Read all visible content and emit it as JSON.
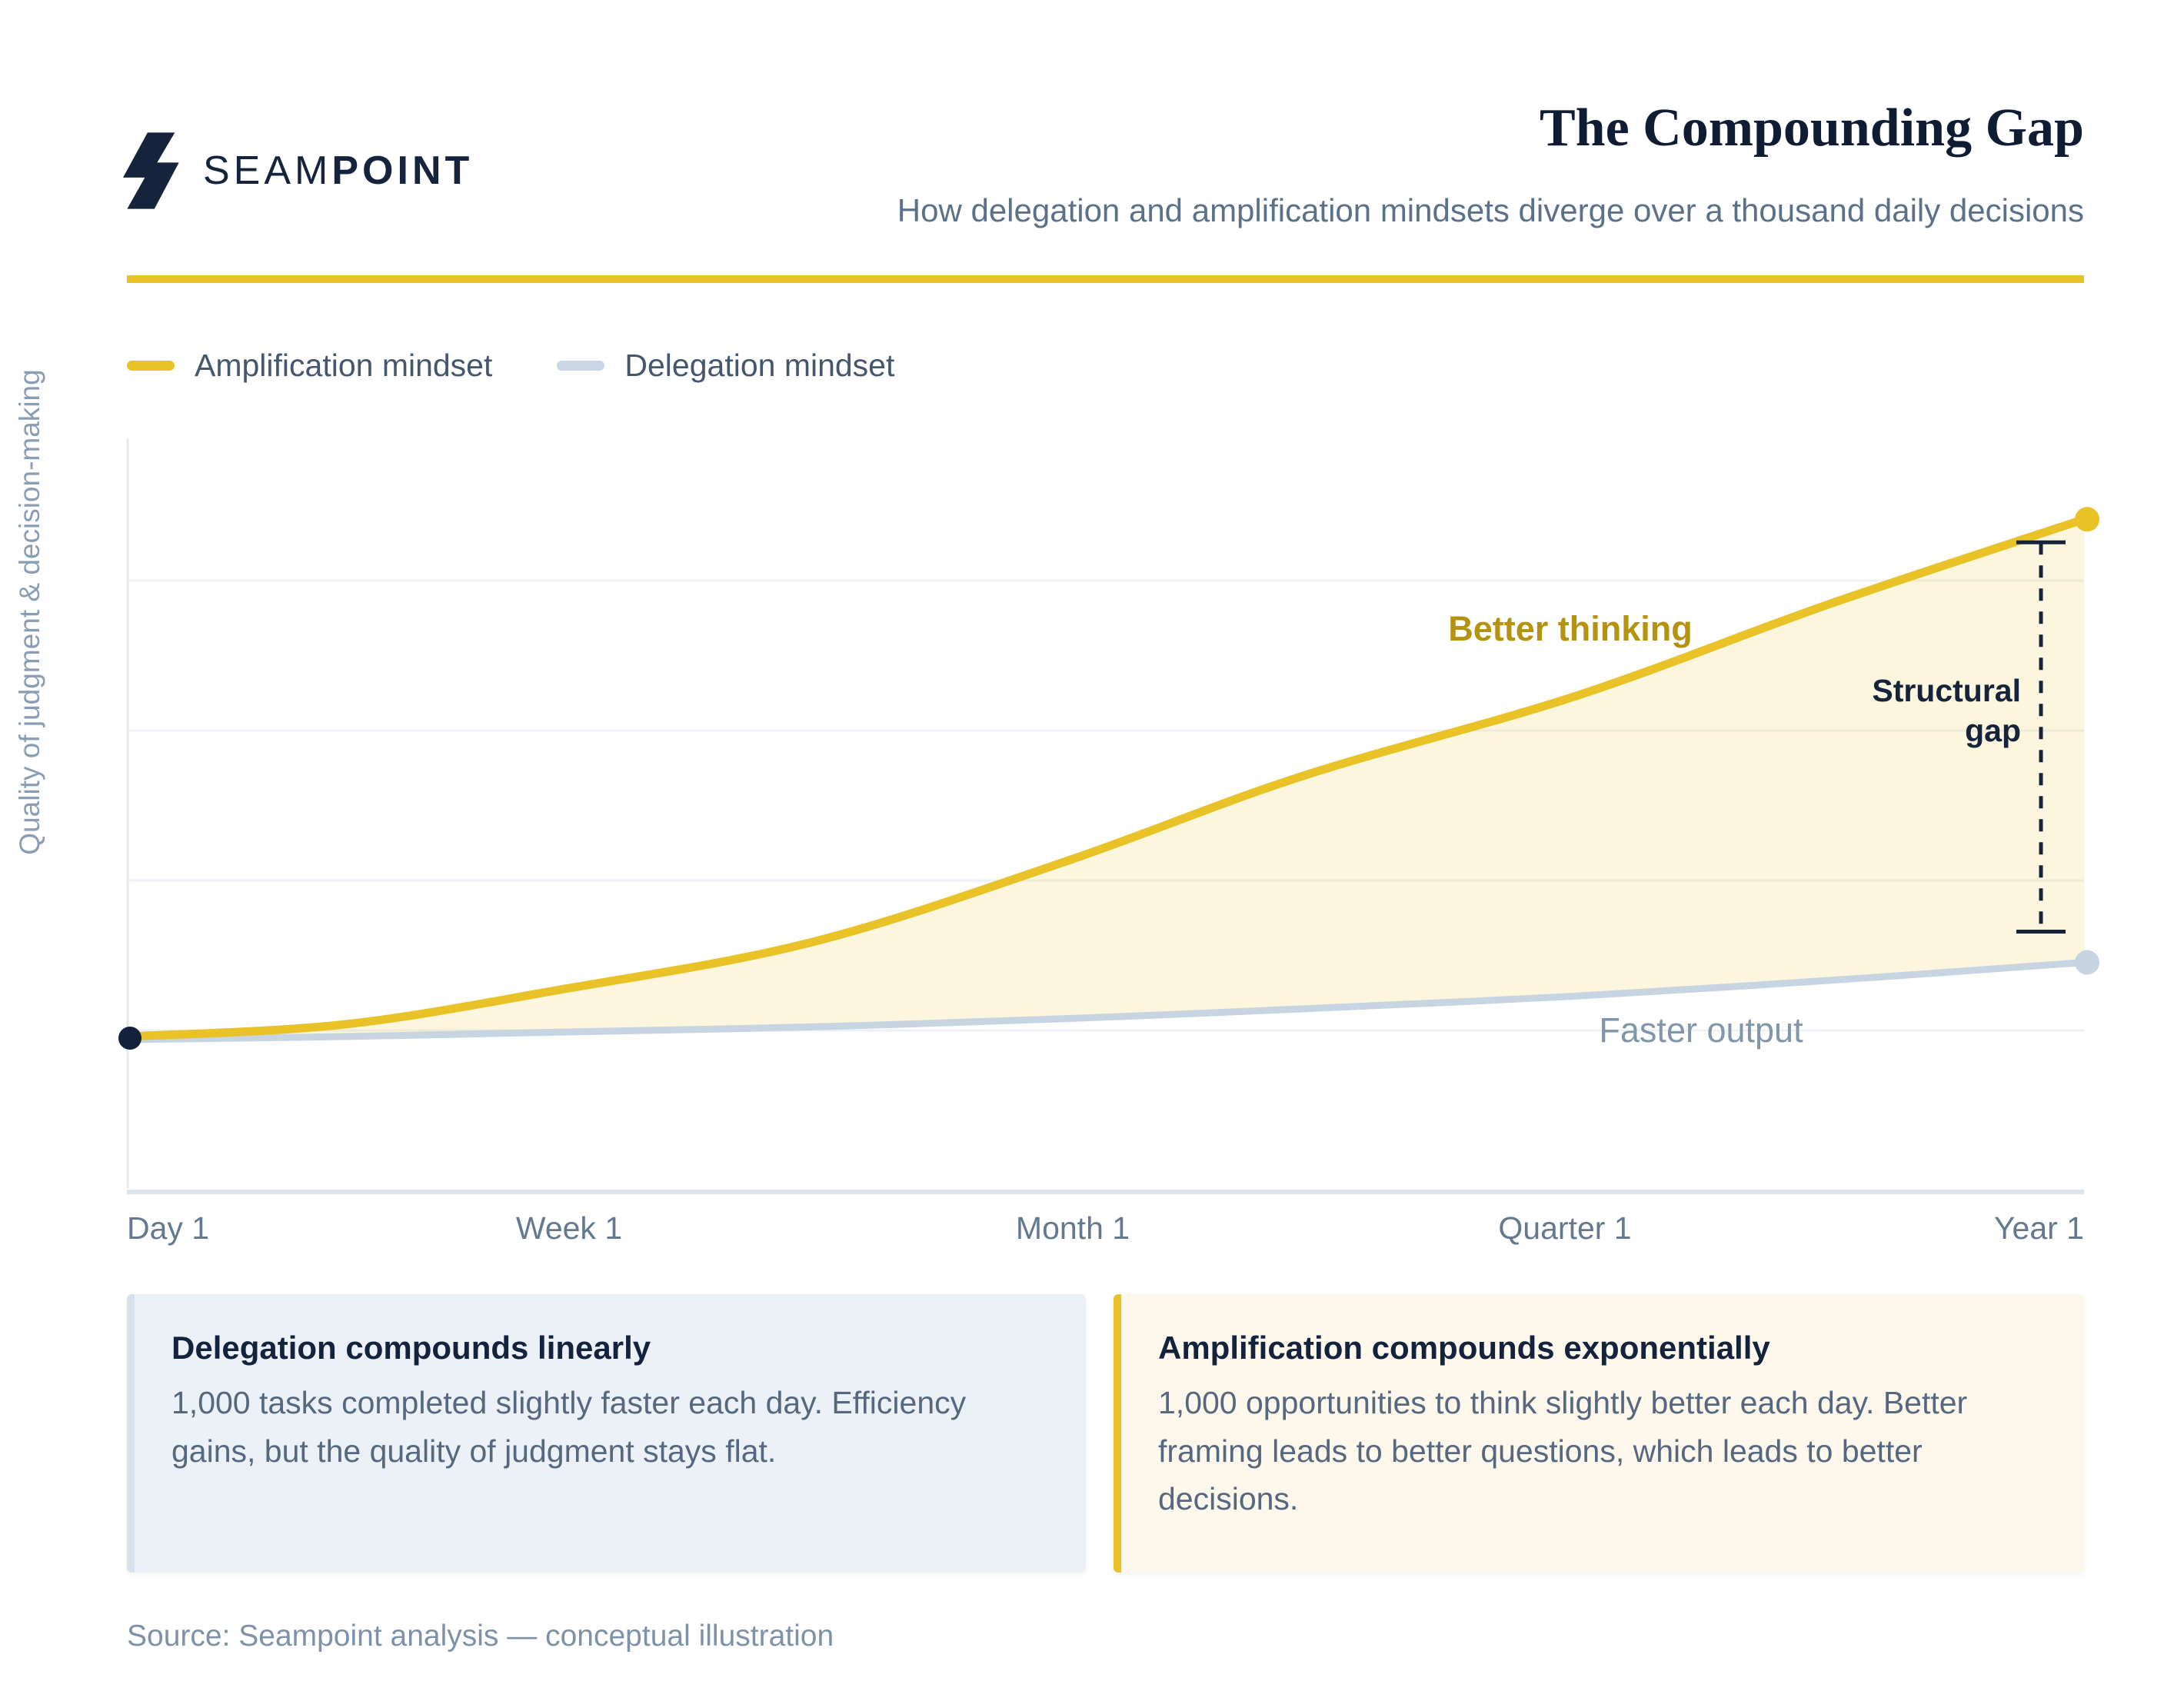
{
  "header": {
    "brand_regular": "SEAM",
    "brand_bold": "POINT",
    "title": "The Compounding Gap",
    "subtitle": "How delegation and amplification mindsets diverge over a thousand daily decisions"
  },
  "legend": {
    "items": [
      {
        "label": "Amplification mindset",
        "color": "#e9c227"
      },
      {
        "label": "Delegation mindset",
        "color": "#c9d6e3"
      }
    ]
  },
  "chart_data": {
    "type": "area",
    "title": "The Compounding Gap",
    "xlabel": "",
    "ylabel": "Quality of judgment & decision-making",
    "x_ticks": [
      "Day 1",
      "Week 1",
      "Month 1",
      "Quarter 1",
      "Year 1"
    ],
    "ylim": [
      0,
      100
    ],
    "grid": "horizontal-only, no y tick labels",
    "legend_position": "top-left above plot",
    "x": [
      0,
      0.11,
      0.22,
      0.35,
      0.48,
      0.6,
      0.74,
      0.87,
      1.0
    ],
    "series": [
      {
        "name": "Amplification mindset",
        "color": "#e9c227",
        "shape": "exponential-like rise",
        "values": [
          20.2,
          21.8,
          26.4,
          32.8,
          43.6,
          54.9,
          65.6,
          77.9,
          89.2
        ]
      },
      {
        "name": "Delegation mindset",
        "color": "#c7d4e2",
        "shape": "nearly flat, slight linear rise",
        "values": [
          19.8,
          20.2,
          20.8,
          21.5,
          22.6,
          23.9,
          25.6,
          27.7,
          30.1
        ]
      }
    ],
    "fill_between": {
      "upper": "Amplification mindset",
      "lower": "Delegation mindset",
      "color": "rgba(234,196,53,0.16)"
    },
    "annotations": {
      "amplification_label": "Better thinking",
      "gap_label": "Structural gap",
      "delegation_label": "Faster output"
    }
  },
  "callouts": {
    "delegation": {
      "title": "Delegation compounds linearly",
      "body": "1,000 tasks completed slightly faster each day. Efficiency gains, but the quality of judgment stays flat."
    },
    "amplification": {
      "title": "Amplification compounds exponentially",
      "body": "1,000 opportunities to think slightly better each day. Better framing leads to better questions, which leads to better decisions."
    }
  },
  "source": "Source: Seampoint analysis — conceptual illustration",
  "colors": {
    "accent_gold": "#e9c227",
    "gold_text": "#b6930e",
    "navy": "#15233b",
    "slate_text": "#55687f",
    "light_slate": "#8a9db2",
    "delegation_line": "#c7d4e2",
    "callout_delegation_bg": "#ecf1f7",
    "callout_amplification_bg": "#fdf8eb"
  }
}
